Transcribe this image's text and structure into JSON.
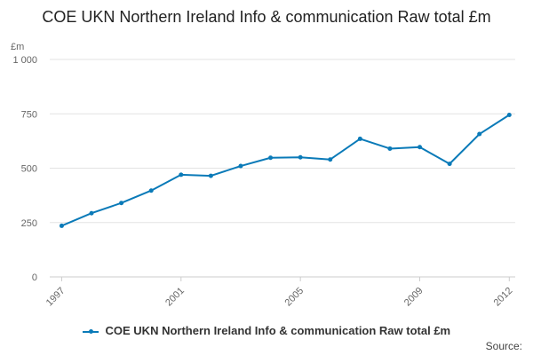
{
  "chart_data": {
    "type": "line",
    "title": "COE UKN Northern Ireland Info & communication Raw total £m",
    "ylabel": "£m",
    "xlabel": "",
    "x": [
      1997,
      1998,
      1999,
      2000,
      2001,
      2002,
      2003,
      2004,
      2005,
      2006,
      2007,
      2008,
      2009,
      2010,
      2011,
      2012
    ],
    "x_tick_labels": [
      "1997",
      "2001",
      "2005",
      "2009",
      "2012"
    ],
    "x_tick_values": [
      1997,
      2001,
      2005,
      2009,
      2012
    ],
    "y_tick_labels": [
      "0",
      "250",
      "500",
      "750",
      "1 000"
    ],
    "y_tick_values": [
      0,
      250,
      500,
      750,
      1000
    ],
    "ylim": [
      0,
      1000
    ],
    "grid": true,
    "legend_position": "bottom",
    "series": [
      {
        "name": "COE UKN Northern Ireland Info & communication Raw total £m",
        "color": "#0a7ab8",
        "values": [
          235,
          293,
          340,
          397,
          470,
          465,
          510,
          548,
          550,
          540,
          635,
          590,
          597,
          520,
          657,
          745
        ]
      }
    ]
  },
  "footer": {
    "source": "Source:"
  }
}
